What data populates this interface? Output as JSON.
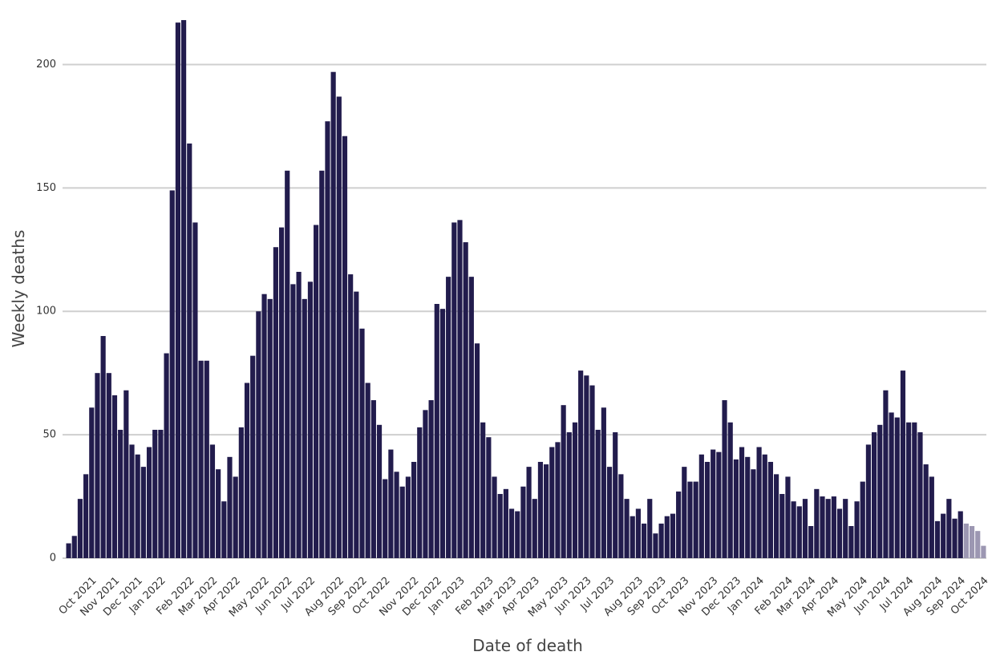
{
  "chart_data": {
    "type": "bar",
    "x_label": "Date of death",
    "y_label": "Weekly deaths",
    "categories": [
      null,
      null,
      null,
      null,
      "Oct 2021",
      null,
      null,
      null,
      "Nov 2021",
      null,
      null,
      null,
      "Dec 2021",
      null,
      null,
      null,
      "Jan 2022",
      null,
      null,
      null,
      null,
      "Feb 2022",
      null,
      null,
      null,
      "Mar 2022",
      null,
      null,
      null,
      "Apr 2022",
      null,
      null,
      null,
      null,
      "May 2022",
      null,
      null,
      null,
      "Jun 2022",
      null,
      null,
      null,
      "Jul 2022",
      null,
      null,
      null,
      null,
      "Aug 2022",
      null,
      null,
      null,
      "Sep 2022",
      null,
      null,
      null,
      "Oct 2022",
      null,
      null,
      null,
      null,
      "Nov 2022",
      null,
      null,
      null,
      "Dec 2022",
      null,
      null,
      null,
      "Jan 2023",
      null,
      null,
      null,
      null,
      "Feb 2023",
      null,
      null,
      null,
      "Mar 2023",
      null,
      null,
      null,
      "Apr 2023",
      null,
      null,
      null,
      null,
      "May 2023",
      null,
      null,
      null,
      "Jun 2023",
      null,
      null,
      null,
      "Jul 2023",
      null,
      null,
      null,
      null,
      "Aug 2023",
      null,
      null,
      null,
      "Sep 2023",
      null,
      null,
      null,
      "Oct 2023",
      null,
      null,
      null,
      null,
      "Nov 2023",
      null,
      null,
      null,
      "Dec 2023",
      null,
      null,
      null,
      "Jan 2024",
      null,
      null,
      null,
      null,
      "Feb 2024",
      null,
      null,
      null,
      "Mar 2024",
      null,
      null,
      null,
      "Apr 2024",
      null,
      null,
      null,
      null,
      "May 2024",
      null,
      null,
      null,
      "Jun 2024",
      null,
      null,
      null,
      "Jul 2024",
      null,
      null,
      null,
      null,
      "Aug 2024",
      null,
      null,
      null,
      "Sep 2024",
      null,
      null,
      null,
      "Oct 2024"
    ],
    "series": [
      {
        "color": "#221c4d",
        "values": [
          6,
          9,
          24,
          34,
          61,
          75,
          90,
          75,
          66,
          52,
          68,
          46,
          42,
          37,
          45,
          52,
          52,
          83,
          149,
          217,
          218,
          168,
          136,
          80,
          80,
          46,
          36,
          23,
          41,
          33,
          53,
          71,
          82,
          100,
          107,
          105,
          126,
          134,
          157,
          111,
          116,
          105,
          112,
          135,
          157,
          177,
          197,
          187,
          171,
          115,
          108,
          93,
          71,
          64,
          54,
          32,
          44,
          35,
          29,
          33,
          39,
          53,
          60,
          64,
          103,
          101,
          114,
          136,
          137,
          128,
          114,
          87,
          55,
          49,
          33,
          26,
          28,
          20,
          19,
          29,
          37,
          24,
          39,
          38,
          45,
          47,
          62,
          51,
          55,
          76,
          74,
          70,
          52,
          61,
          37,
          51,
          34,
          24,
          17,
          20,
          14,
          24,
          10,
          14,
          17,
          18,
          27,
          37,
          31,
          31,
          42,
          39,
          44,
          43,
          64,
          55,
          40,
          45,
          41,
          36,
          45,
          42,
          39,
          34,
          26,
          33,
          23,
          21,
          24,
          13,
          28,
          25,
          24,
          25,
          20,
          24,
          13,
          23,
          31,
          46,
          51,
          54,
          68,
          59,
          57,
          76,
          55,
          55,
          51,
          38,
          33,
          15,
          18,
          24,
          16,
          19,
          null,
          null,
          null,
          null
        ]
      },
      {
        "color": "#9c97b2",
        "values": [
          null,
          null,
          null,
          null,
          null,
          null,
          null,
          null,
          null,
          null,
          null,
          null,
          null,
          null,
          null,
          null,
          null,
          null,
          null,
          null,
          null,
          null,
          null,
          null,
          null,
          null,
          null,
          null,
          null,
          null,
          null,
          null,
          null,
          null,
          null,
          null,
          null,
          null,
          null,
          null,
          null,
          null,
          null,
          null,
          null,
          null,
          null,
          null,
          null,
          null,
          null,
          null,
          null,
          null,
          null,
          null,
          null,
          null,
          null,
          null,
          null,
          null,
          null,
          null,
          null,
          null,
          null,
          null,
          null,
          null,
          null,
          null,
          null,
          null,
          null,
          null,
          null,
          null,
          null,
          null,
          null,
          null,
          null,
          null,
          null,
          null,
          null,
          null,
          null,
          null,
          null,
          null,
          null,
          null,
          null,
          null,
          null,
          null,
          null,
          null,
          null,
          null,
          null,
          null,
          null,
          null,
          null,
          null,
          null,
          null,
          null,
          null,
          null,
          null,
          null,
          null,
          null,
          null,
          null,
          null,
          null,
          null,
          null,
          null,
          null,
          null,
          null,
          null,
          null,
          null,
          null,
          null,
          null,
          null,
          null,
          null,
          null,
          null,
          null,
          null,
          null,
          null,
          null,
          null,
          null,
          null,
          null,
          null,
          null,
          null,
          null,
          null,
          null,
          null,
          null,
          null,
          14,
          13,
          11,
          5
        ]
      }
    ],
    "ylim": [
      0,
      219
    ],
    "yticks": [
      0,
      50,
      100,
      150,
      200
    ],
    "grid": true
  }
}
